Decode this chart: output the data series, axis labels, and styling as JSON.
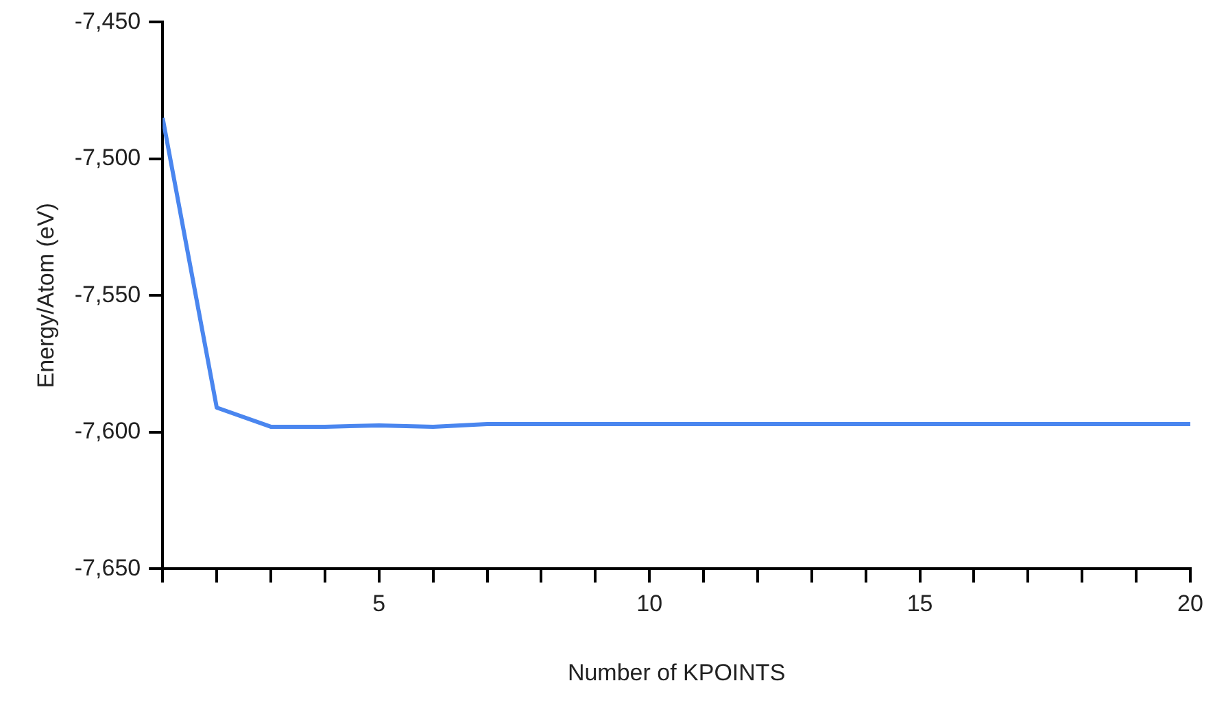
{
  "chart_data": {
    "type": "line",
    "xlabel": "Number of KPOINTS",
    "ylabel": "Energy/Atom (eV)",
    "x": [
      1,
      2,
      3,
      4,
      5,
      6,
      7,
      8,
      9,
      10,
      11,
      12,
      13,
      14,
      15,
      16,
      17,
      18,
      19,
      20
    ],
    "series": [
      {
        "color": "#4a86ef",
        "values": [
          -7485,
          -7591,
          -7598,
          -7598,
          -7597.5,
          -7598,
          -7597,
          -7597,
          -7597,
          -7597,
          -7597,
          -7597,
          -7597,
          -7597,
          -7597,
          -7597,
          -7597,
          -7597,
          -7597,
          -7597
        ]
      }
    ],
    "xlim": [
      1,
      20
    ],
    "xticks": [
      {
        "value": 1,
        "label": null
      },
      {
        "value": 2,
        "label": null
      },
      {
        "value": 3,
        "label": null
      },
      {
        "value": 4,
        "label": null
      },
      5,
      {
        "value": 6,
        "label": null
      },
      {
        "value": 7,
        "label": null
      },
      {
        "value": 8,
        "label": null
      },
      {
        "value": 9,
        "label": null
      },
      10,
      {
        "value": 11,
        "label": null
      },
      {
        "value": 12,
        "label": null
      },
      {
        "value": 13,
        "label": null
      },
      {
        "value": 14,
        "label": null
      },
      15,
      {
        "value": 16,
        "label": null
      },
      {
        "value": 17,
        "label": null
      },
      {
        "value": 18,
        "label": null
      },
      {
        "value": 19,
        "label": null
      },
      20
    ],
    "ylim": [
      -7650,
      -7450
    ],
    "yticks": [
      {
        "value": -7650,
        "label": "-7,650"
      },
      {
        "value": -7600,
        "label": "-7,600"
      },
      {
        "value": -7550,
        "label": "-7,550"
      },
      {
        "value": -7500,
        "label": "-7,500"
      },
      {
        "value": -7450,
        "label": "-7,450"
      }
    ],
    "grid": false,
    "legend": false,
    "marker": "none",
    "line_style": "solid"
  }
}
